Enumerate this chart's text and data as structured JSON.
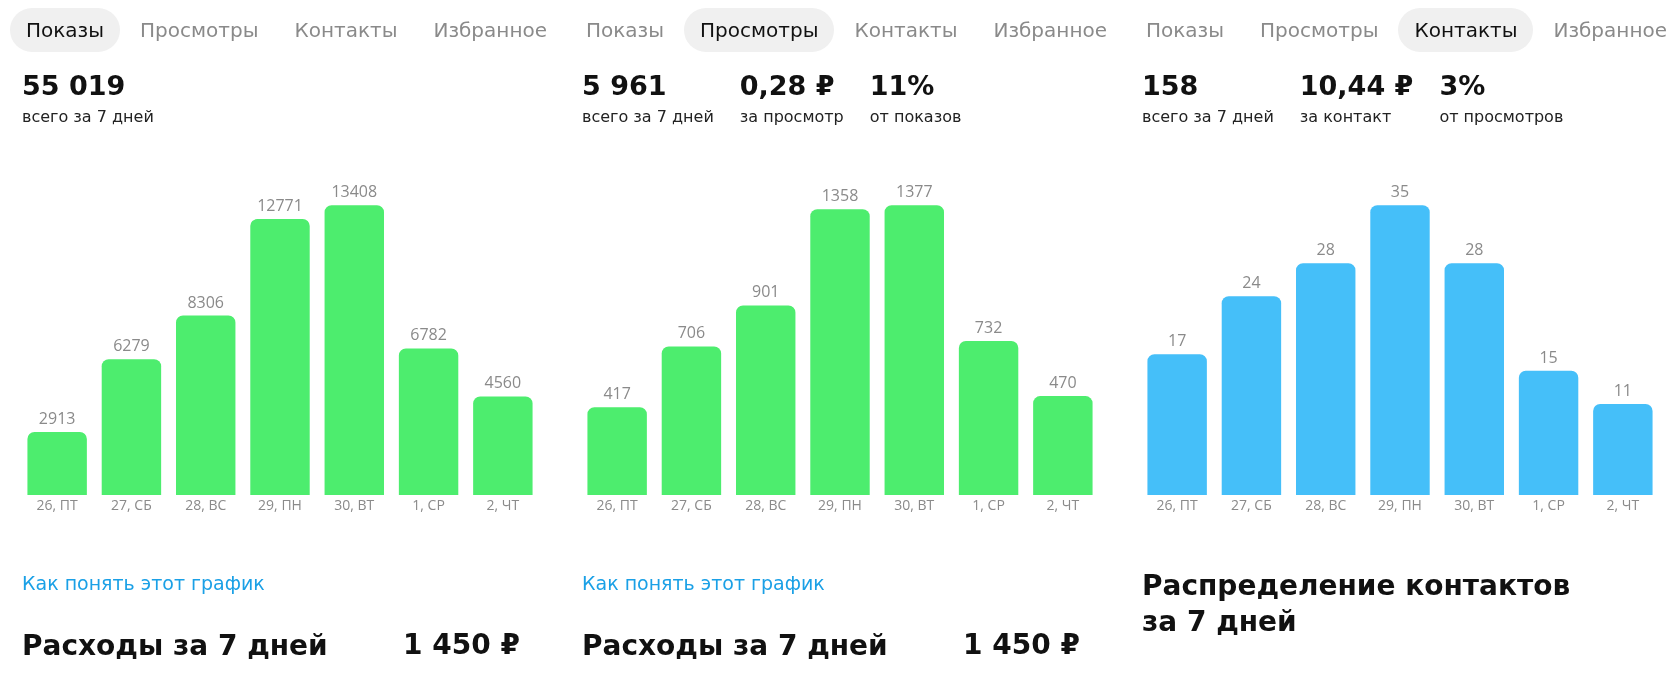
{
  "chart_data": [
    {
      "type": "bar",
      "title": "Расходы за 7 дней",
      "subtitle": "Как понять этот график",
      "categories": [
        "26, ПТ",
        "27, СБ",
        "28, ВС",
        "29, ПН",
        "30, ВТ",
        "1, СР",
        "2, ЧТ"
      ],
      "values": [
        2913,
        6279,
        8306,
        12771,
        13408,
        6782,
        4560
      ],
      "color": "#4ded6e",
      "data_labels": true,
      "tick_labels": "x",
      "annotations": [
        "Показы",
        "Просмотры",
        "Контакты",
        "Избранное",
        "55 019",
        "всего за 7 дней",
        "1 450 ₽"
      ]
    },
    {
      "type": "bar",
      "title": "Расходы за 7 дней",
      "subtitle": "Как понять этот график",
      "categories": [
        "26, ПТ",
        "27, СБ",
        "28, ВС",
        "29, ПН",
        "30, ВТ",
        "1, СР",
        "2, ЧТ"
      ],
      "values": [
        417,
        706,
        901,
        1358,
        1377,
        732,
        470
      ],
      "color": "#4ded6e",
      "data_labels": true,
      "tick_labels": "x",
      "annotations": [
        "Показы",
        "Просмотры",
        "Контакты",
        "Избранное",
        "5 961",
        "всего за 7 дней",
        "0,28 ₽",
        "за просмотр",
        "11%",
        "от показов",
        "1 450 ₽"
      ]
    },
    {
      "type": "bar",
      "title": "Распределение контактов за 7 дней",
      "categories": [
        "26, ПТ",
        "27, СБ",
        "28, ВС",
        "29, ПН",
        "30, ВТ",
        "1, СР",
        "2, ЧТ"
      ],
      "values": [
        17,
        24,
        28,
        35,
        28,
        15,
        11
      ],
      "color": "#45bff9",
      "data_labels": true,
      "tick_labels": "x",
      "annotations": [
        "Показы",
        "Просмотры",
        "Контакты",
        "Избранное",
        "158",
        "всего за 7 дней",
        "10,44 ₽",
        "за контакт",
        "3%",
        "от просмотров"
      ]
    }
  ]
}
